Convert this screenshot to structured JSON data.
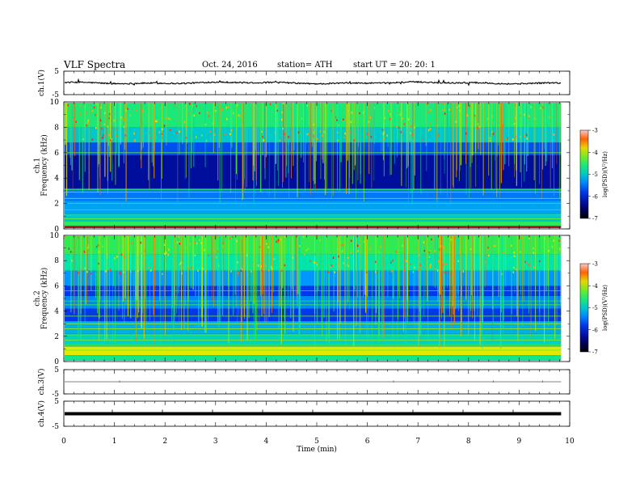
{
  "header": {
    "title": "VLF  Spectra",
    "date": "Oct. 24, 2016",
    "station": "station= ATH",
    "start": "start  UT  =    20: 20: 1"
  },
  "chart_data": [
    {
      "id": "ch1-waveform",
      "type": "line",
      "ylabel": "ch.1(V)",
      "ylim": [
        -5,
        5
      ],
      "y_ticks": [
        "5",
        "-5"
      ],
      "xlim": [
        0,
        10
      ],
      "x_end": 9.83,
      "baseline": 0.0,
      "noise_amplitude": 0.6,
      "color": "#000000"
    },
    {
      "id": "ch1-spectrogram",
      "type": "heatmap",
      "ylabel": "ch.1\nFrequency  (kHz)",
      "ylim": [
        0,
        10
      ],
      "y_ticks": [
        "0",
        "2",
        "4",
        "6",
        "8",
        "10"
      ],
      "xlim": [
        0,
        10
      ],
      "x_end": 9.83,
      "colorbar": {
        "label": "log(PSD)(V²/Hz)",
        "min": -7,
        "max": -3,
        "ticks": [
          "-3",
          "-4",
          "-5",
          "-6",
          "-7"
        ]
      }
    },
    {
      "id": "ch2-spectrogram",
      "type": "heatmap",
      "ylabel": "ch.2\nFrequency  (kHz)",
      "ylim": [
        0,
        10
      ],
      "y_ticks": [
        "0",
        "2",
        "4",
        "6",
        "8",
        "10"
      ],
      "xlim": [
        0,
        10
      ],
      "x_end": 9.83,
      "colorbar": {
        "label": "log(PSD)(V²/Hz)",
        "min": -7,
        "max": -3,
        "ticks": [
          "-3",
          "-4",
          "-5",
          "-6",
          "-7"
        ]
      }
    },
    {
      "id": "ch3-waveform",
      "type": "line",
      "ylabel": "ch.3(V)",
      "ylim": [
        -5,
        5
      ],
      "y_ticks": [
        "5",
        "-5"
      ],
      "xlim": [
        0,
        10
      ],
      "x_end": 9.83,
      "baseline": 0.0,
      "color": "#000000"
    },
    {
      "id": "ch4-waveform",
      "type": "line",
      "ylabel": "ch.4(V)",
      "ylim": [
        -5,
        5
      ],
      "y_ticks": [
        "5",
        "-5"
      ],
      "xlim": [
        0,
        10
      ],
      "x_end": 9.83,
      "baseline": 0.0,
      "thick": true,
      "color": "#000000"
    }
  ],
  "x_axis": {
    "label": "Time  (min)",
    "ticks": [
      "0",
      "1",
      "2",
      "3",
      "4",
      "5",
      "6",
      "7",
      "8",
      "9",
      "10"
    ]
  }
}
